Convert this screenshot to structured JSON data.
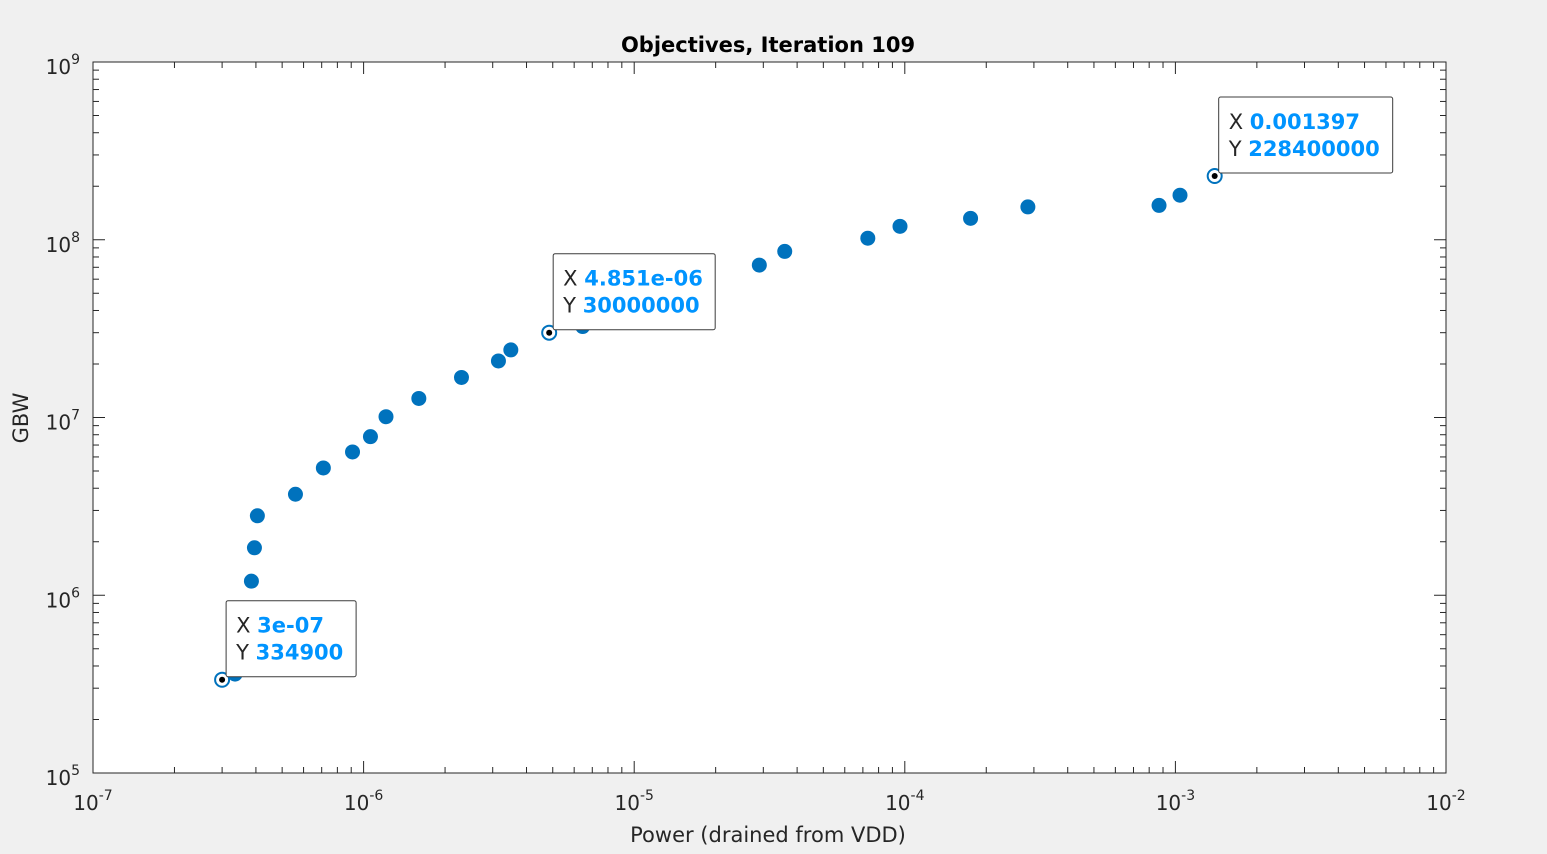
{
  "chart_data": {
    "type": "scatter",
    "title": "Objectives, Iteration 109",
    "xlabel": "Power (drained from VDD)",
    "ylabel": "GBW",
    "xscale": "log",
    "yscale": "log",
    "xlim": [
      1e-07,
      0.01
    ],
    "ylim": [
      100000,
      1000000000
    ],
    "grid": false,
    "x_tick_labels": [
      {
        "value": 1e-07,
        "base": "10",
        "exp": "-7"
      },
      {
        "value": 1e-06,
        "base": "10",
        "exp": "-6"
      },
      {
        "value": 1e-05,
        "base": "10",
        "exp": "-5"
      },
      {
        "value": 0.0001,
        "base": "10",
        "exp": "-4"
      },
      {
        "value": 0.001,
        "base": "10",
        "exp": "-3"
      },
      {
        "value": 0.01,
        "base": "10",
        "exp": "-2"
      }
    ],
    "y_tick_labels": [
      {
        "value": 100000,
        "base": "10",
        "exp": "5"
      },
      {
        "value": 1000000,
        "base": "10",
        "exp": "6"
      },
      {
        "value": 10000000,
        "base": "10",
        "exp": "7"
      },
      {
        "value": 100000000,
        "base": "10",
        "exp": "8"
      },
      {
        "value": 1000000000,
        "base": "10",
        "exp": "9"
      }
    ],
    "marker_color": "#0072bd",
    "points": [
      {
        "x": 3e-07,
        "y": 334900
      },
      {
        "x": 3.35e-07,
        "y": 360000
      },
      {
        "x": 3.85e-07,
        "y": 1200000
      },
      {
        "x": 3.95e-07,
        "y": 1850000
      },
      {
        "x": 4.05e-07,
        "y": 2800000
      },
      {
        "x": 5.6e-07,
        "y": 3700000
      },
      {
        "x": 7.1e-07,
        "y": 5200000
      },
      {
        "x": 9.1e-07,
        "y": 6400000
      },
      {
        "x": 1.06e-06,
        "y": 7800000
      },
      {
        "x": 1.21e-06,
        "y": 10100000
      },
      {
        "x": 1.6e-06,
        "y": 12800000
      },
      {
        "x": 2.3e-06,
        "y": 16800000
      },
      {
        "x": 3.15e-06,
        "y": 20800000
      },
      {
        "x": 3.5e-06,
        "y": 24000000
      },
      {
        "x": 4.851e-06,
        "y": 30000000
      },
      {
        "x": 6.45e-06,
        "y": 32500000
      },
      {
        "x": 2.9e-05,
        "y": 72000000
      },
      {
        "x": 3.6e-05,
        "y": 86000000
      },
      {
        "x": 7.3e-05,
        "y": 102000000
      },
      {
        "x": 9.6e-05,
        "y": 119000000
      },
      {
        "x": 0.000175,
        "y": 132000000
      },
      {
        "x": 0.000285,
        "y": 153000000
      },
      {
        "x": 0.00087,
        "y": 156000000
      },
      {
        "x": 0.00104,
        "y": 178000000
      },
      {
        "x": 0.001397,
        "y": 228400000
      }
    ],
    "datatips": [
      {
        "x": 3e-07,
        "y": 334900,
        "x_label": "X",
        "y_label": "Y",
        "x_text": "3e-07",
        "y_text": "334900"
      },
      {
        "x": 4.851e-06,
        "y": 30000000,
        "x_label": "X",
        "y_label": "Y",
        "x_text": "4.851e-06",
        "y_text": "30000000"
      },
      {
        "x": 0.001397,
        "y": 228400000,
        "x_label": "X",
        "y_label": "Y",
        "x_text": "0.001397",
        "y_text": "228400000"
      }
    ],
    "datatip_value_color": "#0094ff"
  }
}
